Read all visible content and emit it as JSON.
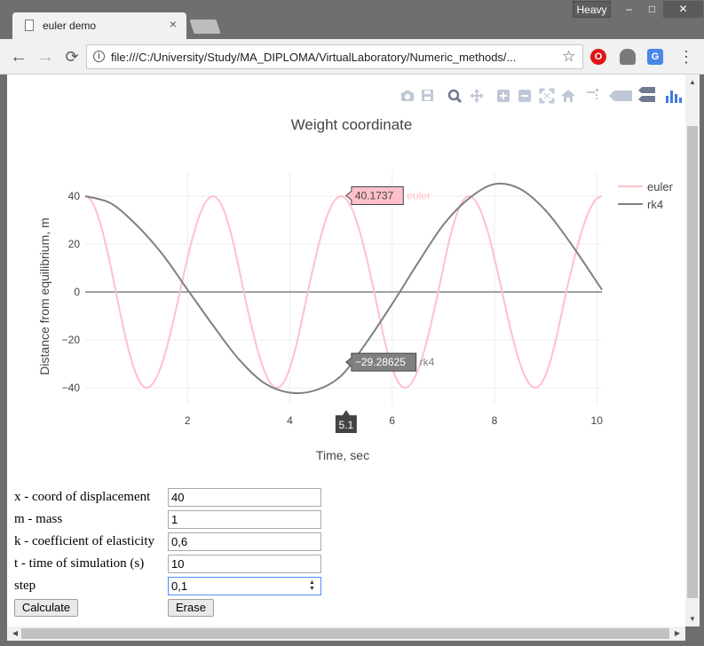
{
  "browser": {
    "tab_title": "euler demo",
    "tab_close": "×",
    "profile": "Heavy",
    "window_controls": {
      "minimize": "–",
      "maximize": "□",
      "close": "✕"
    },
    "url": "file:///C:/University/Study/MA_DIPLOMA/VirtualLaboratory/Numeric_methods/...",
    "nav": {
      "back": "←",
      "forward": "→",
      "reload": "⟳",
      "star": "☆",
      "menu": "⋮"
    },
    "extensions": [
      "opera-icon",
      "ghostery-icon",
      "google-translate-icon"
    ]
  },
  "modebar": [
    "camera-icon",
    "save-icon",
    "zoom-icon",
    "pan-icon",
    "zoom-in-icon",
    "zoom-out-icon",
    "autoscale-icon",
    "reset-axes-icon",
    "spike-lines-icon",
    "hover-closest-icon",
    "hover-compare-icon",
    "plotly-logo-icon"
  ],
  "chart_data": {
    "type": "line",
    "title": "Weight coordinate",
    "xlabel": "Time, sec",
    "ylabel": "Distance from equilibrium, m",
    "xlim": [
      0,
      10.1
    ],
    "ylim": [
      -47,
      50
    ],
    "x_ticks": [
      2,
      4,
      6,
      8,
      10
    ],
    "y_ticks": [
      40,
      20,
      0,
      -20,
      -40
    ],
    "grid": true,
    "legend": "top-right",
    "series": [
      {
        "name": "euler",
        "color": "#ffc0cb",
        "x": [
          0,
          0.6,
          1.2,
          1.85,
          2.5,
          3.1,
          3.75,
          4.35,
          5.0,
          5.65,
          6.25,
          6.9,
          7.5,
          8.15,
          8.8,
          9.4,
          10.1
        ],
        "values": [
          40,
          0,
          -40,
          0,
          40,
          0,
          -40,
          0,
          40,
          0,
          -40,
          0,
          40,
          0,
          -40,
          0,
          40
        ]
      },
      {
        "name": "rk4",
        "color": "#808080",
        "x": [
          0,
          0.5,
          1,
          1.5,
          2,
          2.5,
          3,
          3.5,
          4,
          4.5,
          5,
          5.5,
          6,
          6.5,
          7,
          7.5,
          8,
          8.5,
          9,
          9.5,
          10.1
        ],
        "values": [
          40,
          37,
          28,
          16,
          1,
          -14,
          -28,
          -38,
          -42,
          -41,
          -35,
          -21,
          -5,
          12,
          28,
          39,
          45,
          43,
          34,
          20,
          1
        ]
      }
    ],
    "hover": {
      "x_label": "5.1",
      "points": [
        {
          "series": "euler",
          "x": 5.1,
          "value": 40.1737,
          "text": "40.1737",
          "name": "euler"
        },
        {
          "series": "rk4",
          "x": 5.1,
          "value": -29.28625,
          "text": "−29.28625",
          "name": "rk4"
        }
      ]
    }
  },
  "form": {
    "fields": [
      {
        "label": "x - coord of displacement",
        "value": "40"
      },
      {
        "label": "m - mass",
        "value": "1"
      },
      {
        "label": "k - coefficient of elasticity",
        "value": "0,6"
      },
      {
        "label": "t - time of simulation (s)",
        "value": "10"
      },
      {
        "label": "step",
        "value": "0,1"
      }
    ],
    "calculate_label": "Calculate",
    "erase_label": "Erase"
  }
}
